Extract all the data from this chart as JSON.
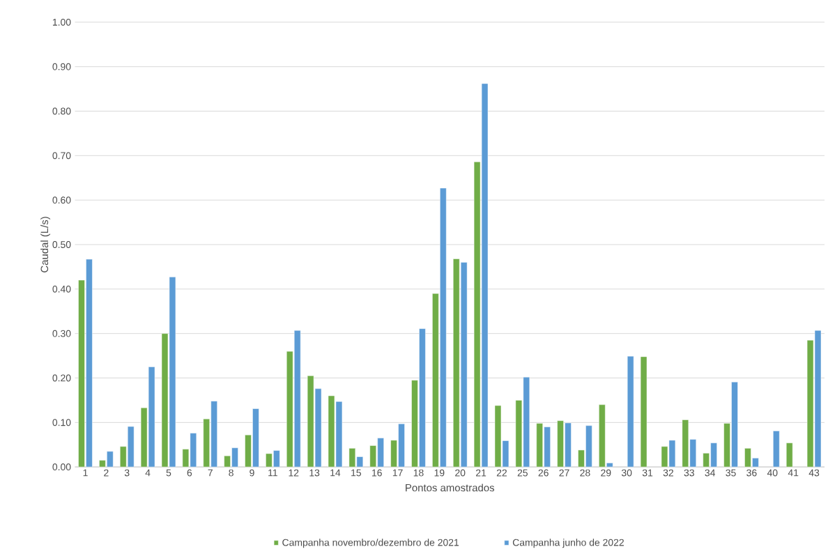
{
  "chart_data": {
    "type": "bar",
    "xlabel": "Pontos amostrados",
    "ylabel": "Caudal (L/s)",
    "categories": [
      "1",
      "2",
      "3",
      "4",
      "5",
      "6",
      "7",
      "8",
      "9",
      "11",
      "12",
      "13",
      "14",
      "15",
      "16",
      "17",
      "18",
      "19",
      "20",
      "21",
      "22",
      "25",
      "26",
      "27",
      "28",
      "29",
      "30",
      "31",
      "32",
      "33",
      "34",
      "35",
      "36",
      "40",
      "41",
      "43"
    ],
    "series": [
      {
        "name": "Campanha novembro/dezembro de 2021",
        "color": "#70ad47",
        "values": [
          0.42,
          0.015,
          0.046,
          0.133,
          0.3,
          0.04,
          0.108,
          0.025,
          0.072,
          0.03,
          0.26,
          0.205,
          0.16,
          0.042,
          0.048,
          0.06,
          0.195,
          0.39,
          0.468,
          0.686,
          0.138,
          0.15,
          0.098,
          0.104,
          0.038,
          0.14,
          null,
          0.248,
          0.046,
          0.106,
          0.031,
          0.098,
          0.042,
          null,
          0.054,
          0.285
        ]
      },
      {
        "name": "Campanha junho de 2022",
        "color": "#5b9bd5",
        "values": [
          0.467,
          0.035,
          0.091,
          0.225,
          0.427,
          0.076,
          0.148,
          0.043,
          0.131,
          0.037,
          0.307,
          0.176,
          0.147,
          0.023,
          0.065,
          0.097,
          0.311,
          0.627,
          0.46,
          0.862,
          0.059,
          0.202,
          0.09,
          0.099,
          0.093,
          0.009,
          0.249,
          null,
          0.06,
          0.062,
          0.054,
          0.191,
          0.02,
          0.081,
          null,
          0.307
        ]
      }
    ],
    "ylim": [
      0,
      1
    ],
    "yticks": [
      {
        "value": 0,
        "label": "0.00"
      },
      {
        "value": 0.1,
        "label": "0.10"
      },
      {
        "value": 0.2,
        "label": "0.20"
      },
      {
        "value": 0.3,
        "label": "0.30"
      },
      {
        "value": 0.4,
        "label": "0.40"
      },
      {
        "value": 0.5,
        "label": "0.50"
      },
      {
        "value": 0.6,
        "label": "0.60"
      },
      {
        "value": 0.7,
        "label": "0.70"
      },
      {
        "value": 0.8,
        "label": "0.80"
      },
      {
        "value": 0.9,
        "label": "0.90"
      },
      {
        "value": 1,
        "label": "1.00"
      }
    ],
    "grid": "y",
    "legend": "bottom"
  }
}
